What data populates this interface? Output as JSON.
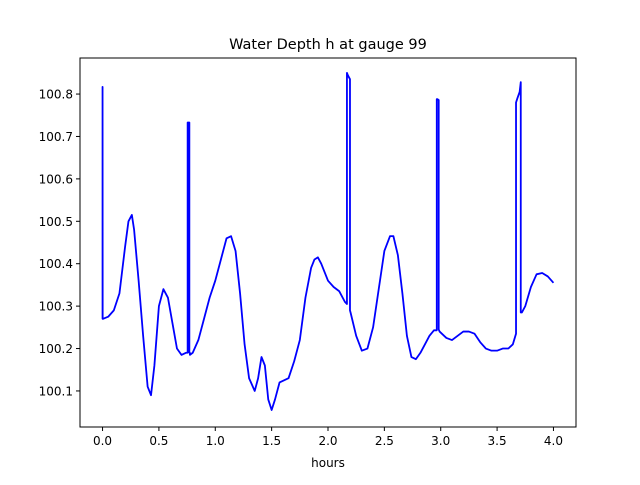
{
  "chart_data": {
    "type": "line",
    "title": "Water Depth h at gauge 99",
    "xlabel": "hours",
    "ylabel": "",
    "xlim": [
      -0.2,
      4.2
    ],
    "ylim": [
      100.015,
      100.885
    ],
    "xticks": [
      0.0,
      0.5,
      1.0,
      1.5,
      2.0,
      2.5,
      3.0,
      3.5,
      4.0
    ],
    "xtick_labels": [
      "0.0",
      "0.5",
      "1.0",
      "1.5",
      "2.0",
      "2.5",
      "3.0",
      "3.5",
      "4.0"
    ],
    "yticks": [
      100.1,
      100.2,
      100.3,
      100.4,
      100.5,
      100.6,
      100.7,
      100.8
    ],
    "ytick_labels": [
      "100.1",
      "100.2",
      "100.3",
      "100.4",
      "100.5",
      "100.6",
      "100.7",
      "100.8"
    ],
    "grid": false,
    "line_color": "#0000ff",
    "series": [
      {
        "x": [
          0.0,
          0.0,
          0.001,
          0.005,
          0.05,
          0.1,
          0.15,
          0.2,
          0.23,
          0.26,
          0.28,
          0.32,
          0.36,
          0.4,
          0.43,
          0.46,
          0.5,
          0.54,
          0.58,
          0.62,
          0.66,
          0.7,
          0.74,
          0.755,
          0.755,
          0.76,
          0.77,
          0.77,
          0.775,
          0.775,
          0.8,
          0.85,
          0.9,
          0.95,
          1.0,
          1.05,
          1.1,
          1.14,
          1.18,
          1.22,
          1.26,
          1.3,
          1.35,
          1.38,
          1.41,
          1.44,
          1.47,
          1.5,
          1.53,
          1.57,
          1.61,
          1.65,
          1.7,
          1.75,
          1.8,
          1.85,
          1.88,
          1.91,
          1.94,
          1.97,
          2.0,
          2.05,
          2.1,
          2.15,
          2.168,
          2.168,
          2.175,
          2.185,
          2.195,
          2.195,
          2.2,
          2.25,
          2.3,
          2.35,
          2.4,
          2.45,
          2.5,
          2.55,
          2.58,
          2.62,
          2.66,
          2.7,
          2.74,
          2.78,
          2.82,
          2.86,
          2.9,
          2.94,
          2.965,
          2.965,
          2.97,
          2.982,
          2.982,
          2.99,
          3.05,
          3.1,
          3.15,
          3.2,
          3.25,
          3.3,
          3.35,
          3.4,
          3.45,
          3.5,
          3.55,
          3.6,
          3.64,
          3.668,
          3.668,
          3.68,
          3.7,
          3.71,
          3.71,
          3.72,
          3.75,
          3.8,
          3.85,
          3.9,
          3.95,
          4.0
        ],
        "y": [
          100.27,
          100.817,
          100.27,
          100.27,
          100.275,
          100.29,
          100.33,
          100.44,
          100.5,
          100.515,
          100.48,
          100.36,
          100.23,
          100.11,
          100.09,
          100.16,
          100.3,
          100.34,
          100.32,
          100.26,
          100.2,
          100.185,
          100.19,
          100.19,
          100.733,
          100.733,
          100.733,
          100.19,
          100.19,
          100.185,
          100.19,
          100.22,
          100.27,
          100.32,
          100.36,
          100.41,
          100.46,
          100.465,
          100.43,
          100.33,
          100.21,
          100.13,
          100.1,
          100.13,
          100.18,
          100.16,
          100.08,
          100.055,
          100.08,
          100.12,
          100.125,
          100.13,
          100.17,
          100.22,
          100.32,
          100.39,
          100.41,
          100.415,
          100.4,
          100.38,
          100.36,
          100.345,
          100.335,
          100.31,
          100.305,
          100.85,
          100.845,
          100.84,
          100.835,
          100.29,
          100.285,
          100.23,
          100.195,
          100.2,
          100.25,
          100.34,
          100.43,
          100.465,
          100.465,
          100.42,
          100.33,
          100.23,
          100.18,
          100.175,
          100.19,
          100.21,
          100.23,
          100.243,
          100.243,
          100.788,
          100.788,
          100.786,
          100.245,
          100.24,
          100.225,
          100.22,
          100.23,
          100.24,
          100.24,
          100.235,
          100.215,
          100.2,
          100.195,
          100.195,
          100.2,
          100.2,
          100.21,
          100.235,
          100.78,
          100.79,
          100.805,
          100.828,
          100.285,
          100.285,
          100.3,
          100.345,
          100.375,
          100.378,
          100.37,
          100.355
        ]
      }
    ]
  }
}
